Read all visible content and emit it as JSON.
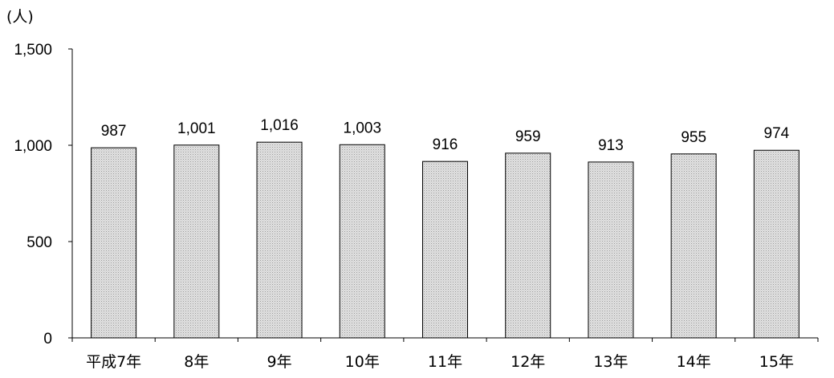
{
  "unit_label": "(人)",
  "chart_data": {
    "type": "bar",
    "title": "",
    "xlabel": "",
    "ylabel": "(人)",
    "ylim": [
      0,
      1500
    ],
    "yticks": [
      0,
      500,
      1000,
      1500
    ],
    "ytick_labels": [
      "0",
      "500",
      "1,000",
      "1,500"
    ],
    "grid": false,
    "categories": [
      "平成7年",
      "8年",
      "9年",
      "10年",
      "11年",
      "12年",
      "13年",
      "14年",
      "15年"
    ],
    "values": [
      987,
      1001,
      1016,
      1003,
      916,
      959,
      913,
      955,
      974
    ],
    "value_labels": [
      "987",
      "1,001",
      "1,016",
      "1,003",
      "916",
      "959",
      "913",
      "955",
      "974"
    ],
    "bar_color": "#d8d8d8"
  }
}
